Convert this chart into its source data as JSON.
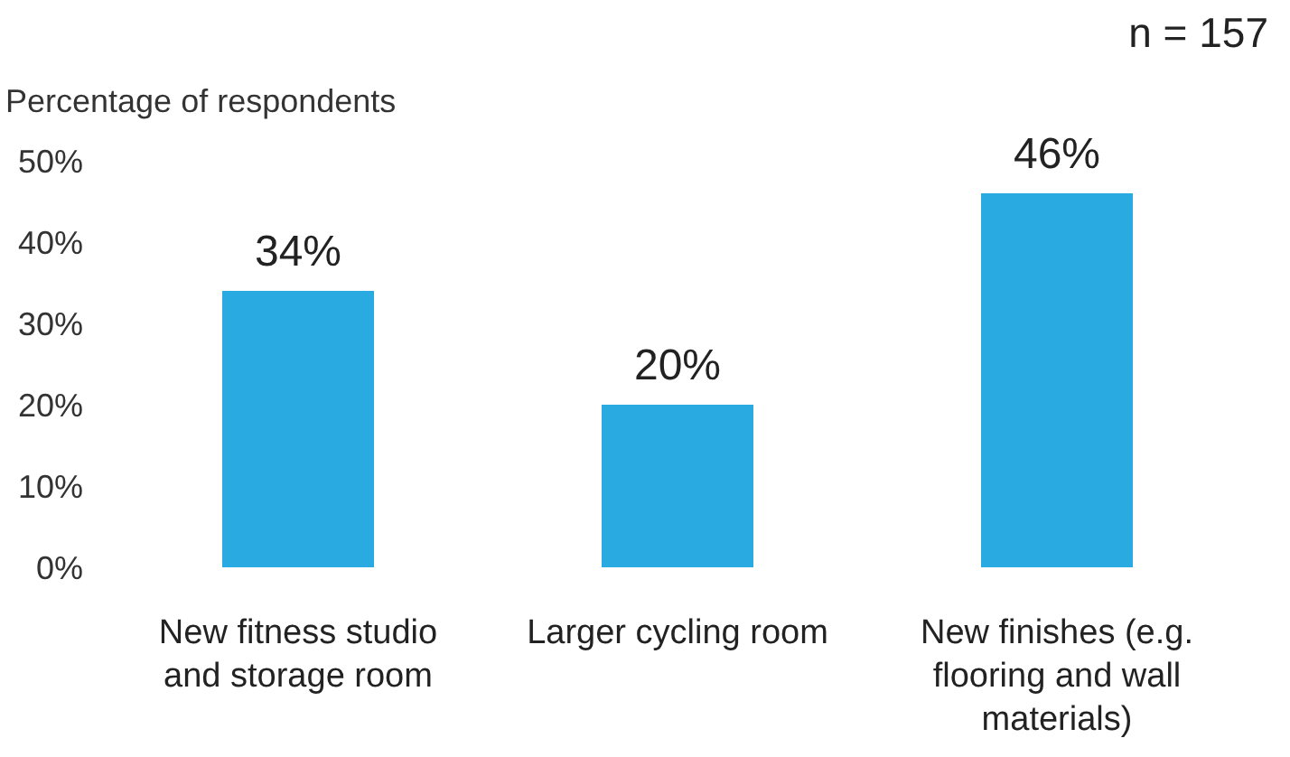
{
  "chart_data": {
    "type": "bar",
    "ylabel": "Percentage of respondents",
    "annotations": [
      "n = 157"
    ],
    "categories": [
      "New fitness studio and storage room",
      "Larger cycling room",
      "New finishes (e.g. flooring and wall materials)"
    ],
    "values": [
      34,
      20,
      46
    ],
    "value_labels": [
      "34%",
      "20%",
      "46%"
    ],
    "color": "#29abe2",
    "ylim": [
      0,
      50
    ],
    "yticks": [
      {
        "value": 0,
        "label": "0%"
      },
      {
        "value": 10,
        "label": "10%"
      },
      {
        "value": 20,
        "label": "20%"
      },
      {
        "value": 30,
        "label": "30%"
      },
      {
        "value": 40,
        "label": "40%"
      },
      {
        "value": 50,
        "label": "50%"
      }
    ],
    "grid": false
  }
}
